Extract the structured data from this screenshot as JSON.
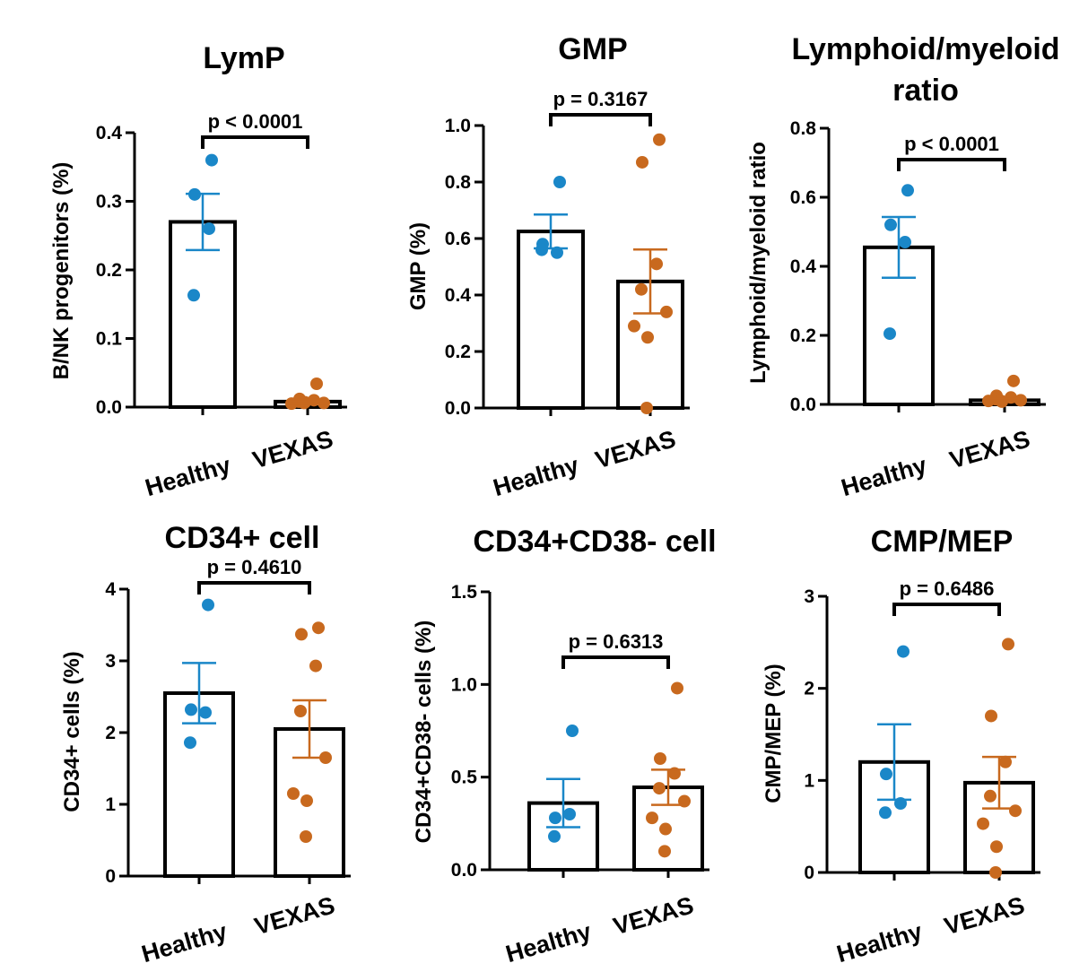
{
  "colors": {
    "healthy": "#1a87c8",
    "vexas": "#c8691e",
    "axis": "#000000"
  },
  "chart_data": [
    {
      "type": "bar",
      "title": [
        "LymP"
      ],
      "ylabel": "B/NK progenitors (%)",
      "ylim": [
        0,
        0.4
      ],
      "yticks": [
        0,
        0.1,
        0.2,
        0.3,
        0.4
      ],
      "ytick_labels": [
        "0.0",
        "0.1",
        "0.2",
        "0.3",
        "0.4"
      ],
      "categories": [
        "Healthy",
        "VEXAS"
      ],
      "means": [
        0.27,
        0.008
      ],
      "sem": [
        0.041,
        0.003
      ],
      "points": [
        [
          0.36,
          0.31,
          0.26,
          0.163
        ],
        [
          0.034,
          0.012,
          0.01,
          0.008,
          0.006,
          0.005,
          0.007,
          0.006
        ]
      ],
      "pvalue": "p < 0.0001"
    },
    {
      "type": "bar",
      "title": [
        "GMP"
      ],
      "ylabel": "GMP (%)",
      "ylim": [
        0,
        1.0
      ],
      "yticks": [
        0,
        0.2,
        0.4,
        0.6,
        0.8,
        1.0
      ],
      "ytick_labels": [
        "0.0",
        "0.2",
        "0.4",
        "0.6",
        "0.8",
        "1.0"
      ],
      "categories": [
        "Healthy",
        "VEXAS"
      ],
      "means": [
        0.625,
        0.448
      ],
      "sem": [
        0.06,
        0.113
      ],
      "points": [
        [
          0.8,
          0.58,
          0.55,
          0.56
        ],
        [
          0.95,
          0.87,
          0.51,
          0.42,
          0.34,
          0.29,
          0.25,
          0.0
        ]
      ],
      "pvalue": "p = 0.3167"
    },
    {
      "type": "bar",
      "title": [
        "Lymphoid/myeloid",
        "ratio"
      ],
      "ylabel": "Lymphoid/myeloid ratio",
      "ylim": [
        0,
        0.8
      ],
      "yticks": [
        0,
        0.2,
        0.4,
        0.6,
        0.8
      ],
      "ytick_labels": [
        "0.0",
        "0.2",
        "0.4",
        "0.6",
        "0.8"
      ],
      "categories": [
        "Healthy",
        "VEXAS"
      ],
      "means": [
        0.455,
        0.012
      ],
      "sem": [
        0.088,
        0.005
      ],
      "points": [
        [
          0.62,
          0.52,
          0.47,
          0.205
        ],
        [
          0.068,
          0.025,
          0.02,
          0.015,
          0.012,
          0.01,
          0.008,
          0.01
        ]
      ],
      "pvalue": "p < 0.0001"
    },
    {
      "type": "bar",
      "title": [
        "CD34+ cell"
      ],
      "ylabel": "CD34+ cells (%)",
      "ylim": [
        0,
        4
      ],
      "yticks": [
        0,
        1,
        2,
        3,
        4
      ],
      "ytick_labels": [
        "0",
        "1",
        "2",
        "3",
        "4"
      ],
      "categories": [
        "Healthy",
        "VEXAS"
      ],
      "means": [
        2.55,
        2.05
      ],
      "sem": [
        0.42,
        0.4
      ],
      "points": [
        [
          3.78,
          2.32,
          2.28,
          1.86
        ],
        [
          3.46,
          3.37,
          2.93,
          2.3,
          1.65,
          1.15,
          1.05,
          0.55
        ]
      ],
      "pvalue": "p = 0.4610"
    },
    {
      "type": "bar",
      "title": [
        "CD34+CD38- cell"
      ],
      "ylabel": "CD34+CD38- cells (%)",
      "ylim": [
        0,
        1.5
      ],
      "yticks": [
        0,
        0.5,
        1.0,
        1.5
      ],
      "ytick_labels": [
        "0.0",
        "0.5",
        "1.0",
        "1.5"
      ],
      "categories": [
        "Healthy",
        "VEXAS"
      ],
      "means": [
        0.36,
        0.445
      ],
      "sem": [
        0.13,
        0.095
      ],
      "points": [
        [
          0.75,
          0.28,
          0.3,
          0.18
        ],
        [
          0.98,
          0.6,
          0.52,
          0.44,
          0.37,
          0.28,
          0.22,
          0.1
        ]
      ],
      "pvalue": "p = 0.6313"
    },
    {
      "type": "bar",
      "title": [
        "CMP/MEP"
      ],
      "ylabel": "CMP/MEP (%)",
      "ylim": [
        0,
        3
      ],
      "yticks": [
        0,
        1,
        2,
        3
      ],
      "ytick_labels": [
        "0",
        "1",
        "2",
        "3"
      ],
      "categories": [
        "Healthy",
        "VEXAS"
      ],
      "means": [
        1.2,
        0.975
      ],
      "sem": [
        0.41,
        0.28
      ],
      "points": [
        [
          2.4,
          1.07,
          0.75,
          0.65
        ],
        [
          2.48,
          1.7,
          1.2,
          0.83,
          0.67,
          0.53,
          0.28,
          0.0
        ]
      ],
      "pvalue": "p = 0.6486"
    }
  ]
}
